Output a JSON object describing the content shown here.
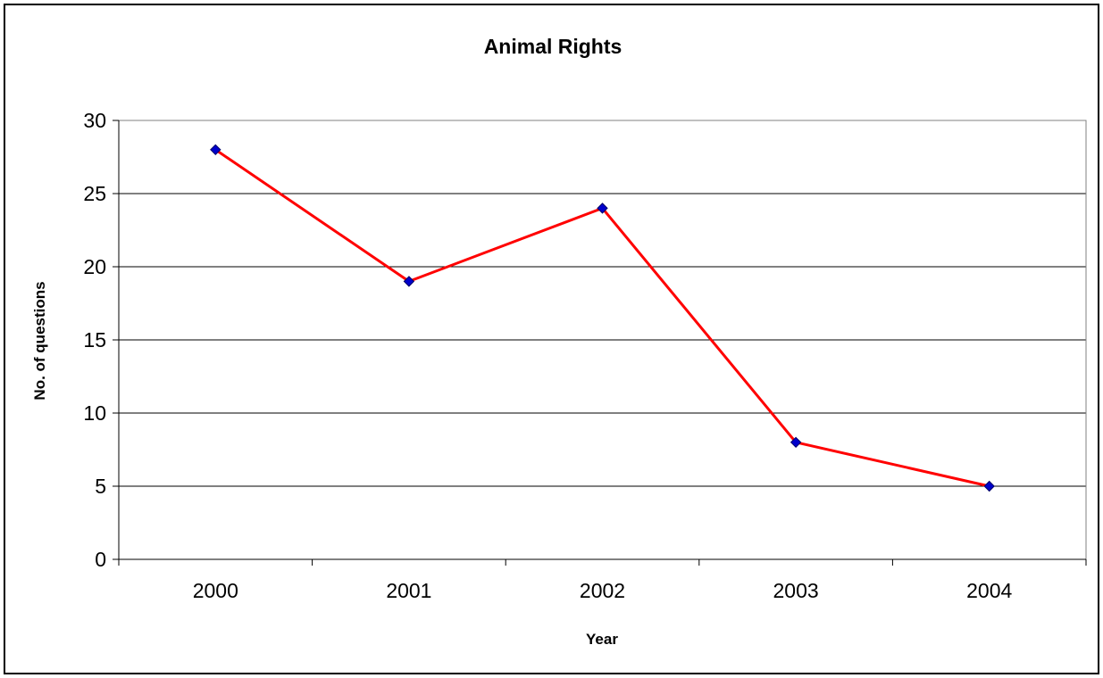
{
  "chart_data": {
    "type": "line",
    "title": "Animal Rights",
    "xlabel": "Year",
    "ylabel": "No. of questions",
    "categories": [
      "2000",
      "2001",
      "2002",
      "2003",
      "2004"
    ],
    "series": [
      {
        "values": [
          28,
          19,
          24,
          8,
          5
        ],
        "line_color": "#FF0000",
        "marker_color": "#0000CC",
        "marker": "diamond"
      }
    ],
    "ylim": [
      0,
      30
    ],
    "yticks": [
      0,
      5,
      10,
      15,
      20,
      25,
      30
    ],
    "grid": true,
    "legend": "none",
    "plot_background": "#FFFFFF",
    "frame_color": "#000000"
  }
}
